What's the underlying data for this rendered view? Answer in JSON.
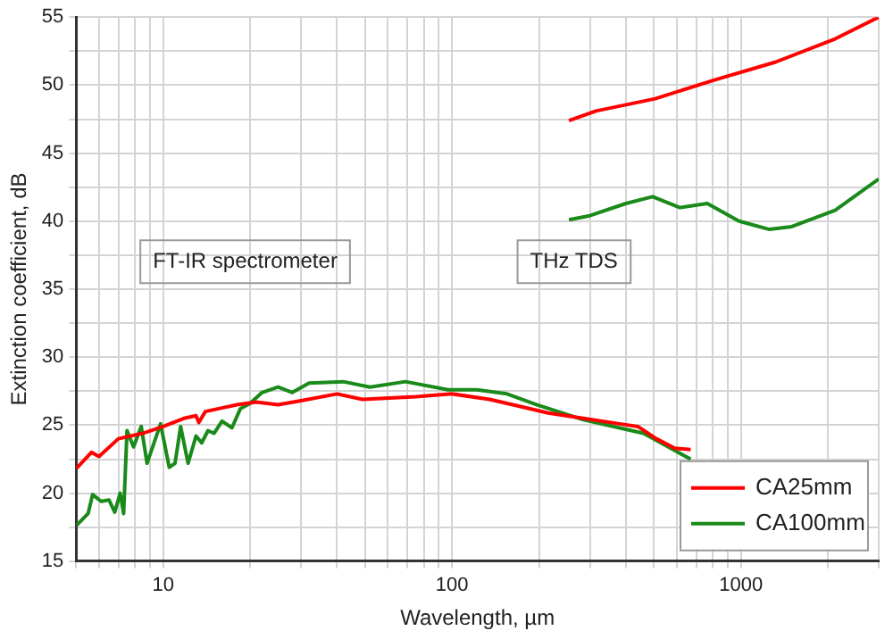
{
  "chart_data": {
    "type": "line",
    "xlabel": "Wavelength, µm",
    "ylabel": "Extinction coefficient, dB",
    "log": "x",
    "grid": true,
    "legend": "bottom right",
    "marker": "none",
    "line_style": "solid",
    "xlim": [
      5,
      3000
    ],
    "ylim": [
      15,
      55
    ],
    "xticks": [
      {
        "value": 5,
        "label": null
      },
      {
        "value": 6,
        "label": null
      },
      {
        "value": 7,
        "label": null
      },
      {
        "value": 8,
        "label": null
      },
      {
        "value": 9,
        "label": null
      },
      10,
      {
        "value": 20,
        "label": null
      },
      {
        "value": 30,
        "label": null
      },
      {
        "value": 40,
        "label": null
      },
      {
        "value": 50,
        "label": null
      },
      {
        "value": 60,
        "label": null
      },
      {
        "value": 70,
        "label": null
      },
      {
        "value": 80,
        "label": null
      },
      {
        "value": 90,
        "label": null
      },
      100,
      {
        "value": 200,
        "label": null
      },
      {
        "value": 300,
        "label": null
      },
      {
        "value": 400,
        "label": null
      },
      {
        "value": 500,
        "label": null
      },
      {
        "value": 600,
        "label": null
      },
      {
        "value": 700,
        "label": null
      },
      {
        "value": 800,
        "label": null
      },
      {
        "value": 900,
        "label": null
      },
      1000,
      {
        "value": 2000,
        "label": null
      },
      {
        "value": 3000,
        "label": null
      }
    ],
    "yticks": [
      15,
      {
        "value": 17.5,
        "label": null
      },
      20,
      {
        "value": 22.5,
        "label": null
      },
      25,
      {
        "value": 27.5,
        "label": null
      },
      30,
      {
        "value": 32.5,
        "label": null
      },
      35,
      {
        "value": 37.5,
        "label": null
      },
      40,
      {
        "value": 42.5,
        "label": null
      },
      45,
      {
        "value": 47.5,
        "label": null
      },
      50,
      {
        "value": 52.5,
        "label": null
      },
      55
    ],
    "annotations": [
      "FT-IR spectrometer",
      "THz TDS"
    ],
    "series": [
      {
        "name": "CA25mm",
        "color": "#ff0000",
        "x": [
          5,
          5.65,
          6,
          7,
          8.5,
          10,
          11.8,
          13,
          13.3,
          14,
          18,
          21,
          25,
          30,
          40,
          49,
          75,
          100,
          135,
          170,
          215,
          285,
          380,
          440,
          510,
          590,
          670
        ],
        "values": [
          21.8,
          23.0,
          22.7,
          24.0,
          24.4,
          24.9,
          25.5,
          25.7,
          25.2,
          26.0,
          26.5,
          26.7,
          26.5,
          26.8,
          27.3,
          26.9,
          27.1,
          27.3,
          26.9,
          26.4,
          25.9,
          25.5,
          25.1,
          24.9,
          24.0,
          23.3,
          23.2
        ]
      },
      {
        "name": "CA100mm",
        "color": "#1a8a1a",
        "x": [
          5,
          5.5,
          5.7,
          6.1,
          6.5,
          6.8,
          7.1,
          7.3,
          7.5,
          7.9,
          8.4,
          8.8,
          9.8,
          10.5,
          11,
          11.5,
          12.2,
          13,
          13.6,
          14.3,
          15,
          16,
          17.3,
          18.5,
          20,
          22,
          25,
          28,
          32,
          42,
          52,
          69,
          97,
          122,
          155,
          197,
          285,
          460,
          670
        ],
        "values": [
          17.6,
          18.5,
          19.9,
          19.4,
          19.5,
          18.6,
          20.0,
          18.5,
          24.6,
          23.4,
          24.9,
          22.2,
          25.1,
          21.9,
          22.2,
          24.9,
          22.2,
          24.2,
          23.7,
          24.6,
          24.4,
          25.3,
          24.8,
          26.2,
          26.6,
          27.4,
          27.8,
          27.4,
          28.1,
          28.2,
          27.8,
          28.2,
          27.6,
          27.6,
          27.3,
          26.5,
          25.4,
          24.4,
          22.5
        ]
      },
      {
        "color": "#ff0000",
        "x": [
          254,
          315,
          505,
          815,
          1320,
          2120,
          3000
        ],
        "values": [
          47.4,
          48.1,
          49.0,
          50.4,
          51.7,
          53.4,
          55
        ]
      },
      {
        "color": "#1a8a1a",
        "x": [
          254,
          300,
          400,
          495,
          615,
          765,
          985,
          1250,
          1500,
          2120,
          3000
        ],
        "values": [
          40.1,
          40.4,
          41.3,
          41.8,
          41.0,
          41.3,
          40.0,
          39.4,
          39.6,
          40.8,
          43.1
        ]
      }
    ]
  }
}
